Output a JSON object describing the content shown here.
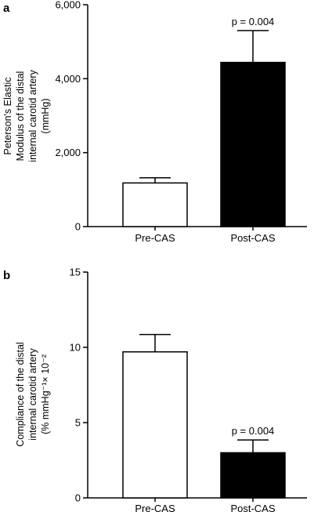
{
  "chart_data": [
    {
      "type": "bar",
      "panel_label": "a",
      "categories": [
        "Pre-CAS",
        "Post-CAS"
      ],
      "values": [
        1180,
        4440
      ],
      "errors": [
        140,
        860
      ],
      "ylabel_lines": [
        "Peterson's Elastic",
        "Modulus of the distal",
        "internal carotid artery",
        "(mmHg)"
      ],
      "ylim": [
        0,
        6000
      ],
      "yticks": [
        0,
        2000,
        4000,
        6000
      ],
      "ytick_labels": [
        "0",
        "2,000",
        "4,000",
        "6,000"
      ],
      "bar_colors": [
        "#ffffff",
        "#000000"
      ],
      "annotation": {
        "text": "p = 0.004",
        "category": "Post-CAS"
      },
      "grid": false,
      "legend": "none"
    },
    {
      "type": "bar",
      "panel_label": "b",
      "categories": [
        "Pre-CAS",
        "Post-CAS"
      ],
      "values": [
        9.7,
        3.0
      ],
      "errors": [
        1.15,
        0.85
      ],
      "ylabel_lines": [
        "Compliance of the distal",
        "internal carotid artery",
        "(% mmHg⁻¹× 10⁻²"
      ],
      "ylim": [
        0,
        15
      ],
      "yticks": [
        0,
        5,
        10,
        15
      ],
      "ytick_labels": [
        "0",
        "5",
        "10",
        "15"
      ],
      "bar_colors": [
        "#ffffff",
        "#000000"
      ],
      "annotation": {
        "text": "p = 0.004",
        "category": "Post-CAS"
      },
      "grid": false,
      "legend": "none"
    }
  ]
}
